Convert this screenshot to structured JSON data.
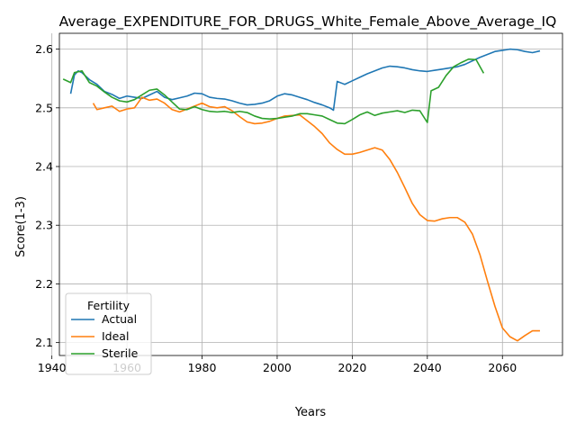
{
  "chart_data": {
    "type": "line",
    "title": "Average_EXPENDITURE_FOR_DRUGS_White_Female_Above_Average_IQ",
    "xlabel": "Years",
    "ylabel": "Score(1-3)",
    "xlim": [
      1942,
      2076
    ],
    "ylim": [
      2.078,
      2.627
    ],
    "xticks": [
      1940,
      1960,
      1980,
      2000,
      2020,
      2040,
      2060
    ],
    "yticks": [
      2.1,
      2.2,
      2.3,
      2.4,
      2.5,
      2.6
    ],
    "grid": true,
    "legend": {
      "title": "Fertility",
      "position": "lower-left"
    },
    "series": [
      {
        "name": "Actual",
        "color": "#1f77b4",
        "points": [
          [
            1945,
            2.524
          ],
          [
            1946,
            2.556
          ],
          [
            1947,
            2.563
          ],
          [
            1948,
            2.56
          ],
          [
            1950,
            2.548
          ],
          [
            1952,
            2.54
          ],
          [
            1954,
            2.528
          ],
          [
            1956,
            2.523
          ],
          [
            1958,
            2.516
          ],
          [
            1960,
            2.52
          ],
          [
            1962,
            2.518
          ],
          [
            1964,
            2.516
          ],
          [
            1966,
            2.522
          ],
          [
            1968,
            2.528
          ],
          [
            1970,
            2.518
          ],
          [
            1972,
            2.514
          ],
          [
            1974,
            2.517
          ],
          [
            1976,
            2.52
          ],
          [
            1978,
            2.525
          ],
          [
            1980,
            2.524
          ],
          [
            1982,
            2.518
          ],
          [
            1984,
            2.516
          ],
          [
            1986,
            2.515
          ],
          [
            1988,
            2.512
          ],
          [
            1990,
            2.508
          ],
          [
            1992,
            2.505
          ],
          [
            1994,
            2.506
          ],
          [
            1996,
            2.508
          ],
          [
            1998,
            2.512
          ],
          [
            2000,
            2.52
          ],
          [
            2002,
            2.524
          ],
          [
            2004,
            2.522
          ],
          [
            2006,
            2.518
          ],
          [
            2008,
            2.514
          ],
          [
            2010,
            2.509
          ],
          [
            2012,
            2.505
          ],
          [
            2014,
            2.5
          ],
          [
            2015,
            2.496
          ],
          [
            2016,
            2.545
          ],
          [
            2018,
            2.54
          ],
          [
            2020,
            2.546
          ],
          [
            2022,
            2.552
          ],
          [
            2024,
            2.558
          ],
          [
            2026,
            2.563
          ],
          [
            2028,
            2.568
          ],
          [
            2030,
            2.571
          ],
          [
            2032,
            2.57
          ],
          [
            2034,
            2.568
          ],
          [
            2036,
            2.565
          ],
          [
            2038,
            2.563
          ],
          [
            2040,
            2.562
          ],
          [
            2042,
            2.564
          ],
          [
            2044,
            2.566
          ],
          [
            2046,
            2.568
          ],
          [
            2048,
            2.57
          ],
          [
            2050,
            2.574
          ],
          [
            2052,
            2.58
          ],
          [
            2054,
            2.586
          ],
          [
            2056,
            2.591
          ],
          [
            2058,
            2.596
          ],
          [
            2060,
            2.598
          ],
          [
            2062,
            2.6
          ],
          [
            2064,
            2.599
          ],
          [
            2066,
            2.596
          ],
          [
            2068,
            2.594
          ],
          [
            2070,
            2.597
          ]
        ]
      },
      {
        "name": "Ideal",
        "color": "#ff7f0e",
        "points": [
          [
            1951,
            2.508
          ],
          [
            1952,
            2.497
          ],
          [
            1954,
            2.5
          ],
          [
            1956,
            2.503
          ],
          [
            1958,
            2.494
          ],
          [
            1960,
            2.498
          ],
          [
            1962,
            2.5
          ],
          [
            1964,
            2.518
          ],
          [
            1966,
            2.513
          ],
          [
            1968,
            2.515
          ],
          [
            1970,
            2.508
          ],
          [
            1972,
            2.497
          ],
          [
            1974,
            2.493
          ],
          [
            1976,
            2.498
          ],
          [
            1978,
            2.503
          ],
          [
            1980,
            2.508
          ],
          [
            1982,
            2.502
          ],
          [
            1984,
            2.5
          ],
          [
            1986,
            2.502
          ],
          [
            1988,
            2.495
          ],
          [
            1990,
            2.485
          ],
          [
            1992,
            2.476
          ],
          [
            1994,
            2.473
          ],
          [
            1996,
            2.474
          ],
          [
            1998,
            2.477
          ],
          [
            2000,
            2.482
          ],
          [
            2002,
            2.486
          ],
          [
            2004,
            2.487
          ],
          [
            2006,
            2.488
          ],
          [
            2008,
            2.478
          ],
          [
            2010,
            2.468
          ],
          [
            2012,
            2.456
          ],
          [
            2014,
            2.44
          ],
          [
            2016,
            2.429
          ],
          [
            2018,
            2.421
          ],
          [
            2020,
            2.421
          ],
          [
            2022,
            2.424
          ],
          [
            2024,
            2.428
          ],
          [
            2026,
            2.432
          ],
          [
            2028,
            2.428
          ],
          [
            2030,
            2.412
          ],
          [
            2032,
            2.39
          ],
          [
            2034,
            2.364
          ],
          [
            2036,
            2.337
          ],
          [
            2038,
            2.318
          ],
          [
            2040,
            2.308
          ],
          [
            2042,
            2.307
          ],
          [
            2044,
            2.311
          ],
          [
            2046,
            2.313
          ],
          [
            2048,
            2.313
          ],
          [
            2050,
            2.305
          ],
          [
            2052,
            2.285
          ],
          [
            2054,
            2.25
          ],
          [
            2056,
            2.205
          ],
          [
            2058,
            2.162
          ],
          [
            2060,
            2.125
          ],
          [
            2062,
            2.11
          ],
          [
            2064,
            2.103
          ],
          [
            2066,
            2.112
          ],
          [
            2068,
            2.12
          ],
          [
            2070,
            2.12
          ]
        ]
      },
      {
        "name": "Sterile",
        "color": "#2ca02c",
        "points": [
          [
            1943,
            2.549
          ],
          [
            1945,
            2.543
          ],
          [
            1946,
            2.56
          ],
          [
            1948,
            2.563
          ],
          [
            1950,
            2.543
          ],
          [
            1952,
            2.537
          ],
          [
            1954,
            2.527
          ],
          [
            1956,
            2.518
          ],
          [
            1958,
            2.512
          ],
          [
            1960,
            2.51
          ],
          [
            1962,
            2.514
          ],
          [
            1964,
            2.522
          ],
          [
            1966,
            2.53
          ],
          [
            1968,
            2.532
          ],
          [
            1970,
            2.522
          ],
          [
            1972,
            2.51
          ],
          [
            1974,
            2.498
          ],
          [
            1976,
            2.497
          ],
          [
            1978,
            2.502
          ],
          [
            1980,
            2.497
          ],
          [
            1982,
            2.494
          ],
          [
            1984,
            2.493
          ],
          [
            1986,
            2.494
          ],
          [
            1988,
            2.492
          ],
          [
            1990,
            2.494
          ],
          [
            1992,
            2.492
          ],
          [
            1994,
            2.486
          ],
          [
            1996,
            2.482
          ],
          [
            1998,
            2.481
          ],
          [
            2000,
            2.482
          ],
          [
            2002,
            2.484
          ],
          [
            2004,
            2.486
          ],
          [
            2006,
            2.49
          ],
          [
            2008,
            2.49
          ],
          [
            2010,
            2.488
          ],
          [
            2012,
            2.486
          ],
          [
            2014,
            2.48
          ],
          [
            2016,
            2.474
          ],
          [
            2018,
            2.473
          ],
          [
            2020,
            2.48
          ],
          [
            2022,
            2.488
          ],
          [
            2024,
            2.493
          ],
          [
            2026,
            2.487
          ],
          [
            2028,
            2.491
          ],
          [
            2030,
            2.493
          ],
          [
            2032,
            2.495
          ],
          [
            2034,
            2.492
          ],
          [
            2036,
            2.496
          ],
          [
            2038,
            2.495
          ],
          [
            2040,
            2.475
          ],
          [
            2041,
            2.529
          ],
          [
            2043,
            2.535
          ],
          [
            2045,
            2.555
          ],
          [
            2047,
            2.57
          ],
          [
            2049,
            2.577
          ],
          [
            2051,
            2.583
          ],
          [
            2053,
            2.582
          ],
          [
            2055,
            2.559
          ]
        ]
      }
    ]
  }
}
